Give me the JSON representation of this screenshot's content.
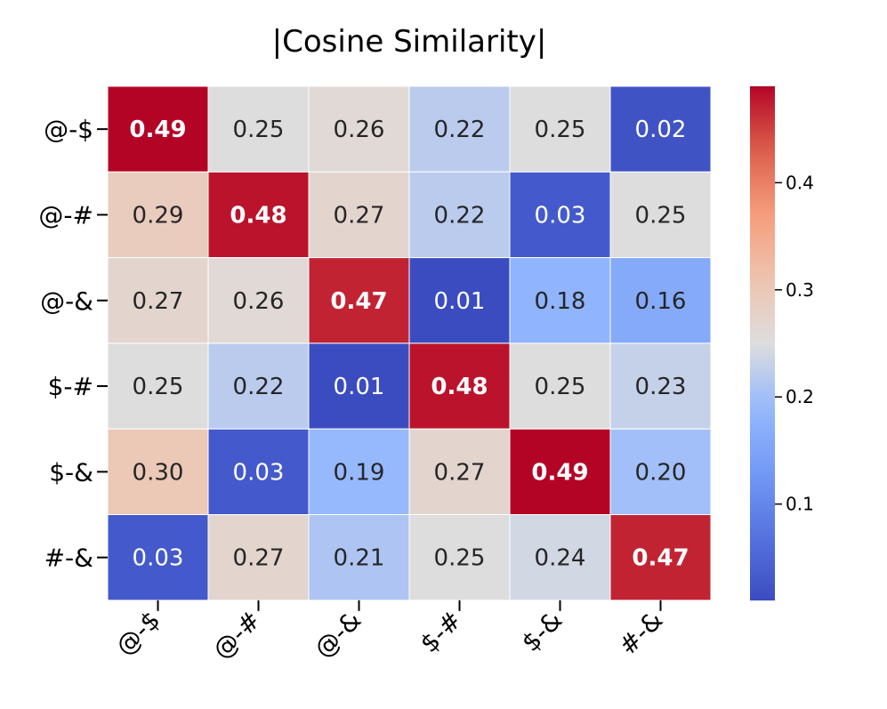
{
  "chart_data": {
    "type": "heatmap",
    "title": "|Cosine Similarity|",
    "x_labels": [
      "@-$",
      "@-#",
      "@-&",
      "$-#",
      "$-&",
      "#-&"
    ],
    "y_labels": [
      "@-$",
      "@-#",
      "@-&",
      "$-#",
      "$-&",
      "#-&"
    ],
    "values": [
      [
        0.49,
        0.25,
        0.26,
        0.22,
        0.25,
        0.02
      ],
      [
        0.29,
        0.48,
        0.27,
        0.22,
        0.03,
        0.25
      ],
      [
        0.27,
        0.26,
        0.47,
        0.01,
        0.18,
        0.16
      ],
      [
        0.25,
        0.22,
        0.01,
        0.48,
        0.25,
        0.23
      ],
      [
        0.3,
        0.03,
        0.19,
        0.27,
        0.49,
        0.2
      ],
      [
        0.03,
        0.27,
        0.21,
        0.25,
        0.24,
        0.47
      ]
    ],
    "colormap": "coolwarm",
    "vmin": 0.01,
    "vmax": 0.49,
    "colorbar_ticks": [
      0.1,
      0.2,
      0.3,
      0.4
    ],
    "colorbar_tick_labels": [
      "0.1",
      "0.2",
      "0.3",
      "0.4"
    ],
    "diagonal_labels_bold": true
  }
}
